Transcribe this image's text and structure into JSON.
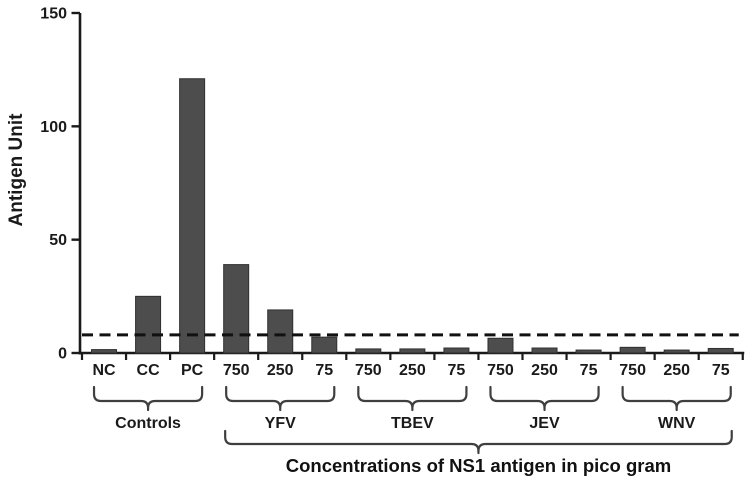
{
  "chart_data": {
    "type": "bar",
    "title": "",
    "ylabel": "Antigen Unit",
    "caption": "Concentrations of NS1 antigen in pico gram",
    "ylim": [
      0,
      150
    ],
    "yticks": [
      0,
      50,
      100,
      150
    ],
    "grid": false,
    "legend": "none",
    "cutoff_line": {
      "style": "dashed",
      "value": 8
    },
    "groups": [
      {
        "label": "Controls",
        "categories": [
          "NC",
          "CC",
          "PC"
        ],
        "values": [
          1.5,
          25,
          121
        ],
        "under_caption_brace": false
      },
      {
        "label": "YFV",
        "categories": [
          "750",
          "250",
          "75"
        ],
        "values": [
          39,
          19,
          7
        ],
        "under_caption_brace": true
      },
      {
        "label": "TBEV",
        "categories": [
          "750",
          "250",
          "75"
        ],
        "values": [
          1.8,
          1.8,
          2.2
        ],
        "under_caption_brace": true
      },
      {
        "label": "JEV",
        "categories": [
          "750",
          "250",
          "75"
        ],
        "values": [
          6.5,
          2.2,
          1.3
        ],
        "under_caption_brace": true
      },
      {
        "label": "WNV",
        "categories": [
          "750",
          "250",
          "75"
        ],
        "values": [
          2.5,
          1.3,
          2
        ],
        "under_caption_brace": true
      }
    ],
    "colors": {
      "bar": "#4d4d4d",
      "bar_edge": "#303030",
      "axis": "#1a1a1a",
      "text": "#1a1a1a",
      "brace": "#3f3f3f",
      "cutoff": "#111111",
      "background": "#ffffff"
    }
  }
}
